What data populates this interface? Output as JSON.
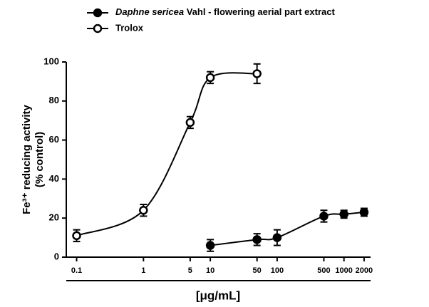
{
  "chart_data": {
    "type": "scatter",
    "x_label": "[μg/mL]",
    "y_label": [
      "Fe³⁺ reducing activity",
      "(% control)"
    ],
    "xscale": "log",
    "xlim": [
      0.07,
      2500
    ],
    "xticks": [
      0.1,
      1,
      5,
      10,
      50,
      100,
      500,
      1000,
      2000
    ],
    "ylim": [
      0,
      100
    ],
    "yticks": [
      0,
      20,
      40,
      60,
      80,
      100
    ],
    "legend": "top",
    "series": [
      {
        "name": "Daphne sericea Vahl - flowering aerial part extract",
        "color": "#000000",
        "marker": "filled",
        "x": [
          10,
          50,
          100,
          500,
          1000,
          2000
        ],
        "values": [
          6,
          9,
          10,
          21,
          22,
          23
        ],
        "errors": [
          3,
          3,
          4,
          3,
          2,
          2
        ]
      },
      {
        "name": "Trolox",
        "color": "#000000",
        "marker": "open",
        "x": [
          0.1,
          1,
          5,
          10,
          50
        ],
        "values": [
          11,
          24,
          69,
          92,
          94
        ],
        "errors": [
          3,
          3,
          3,
          3,
          5
        ]
      }
    ]
  }
}
